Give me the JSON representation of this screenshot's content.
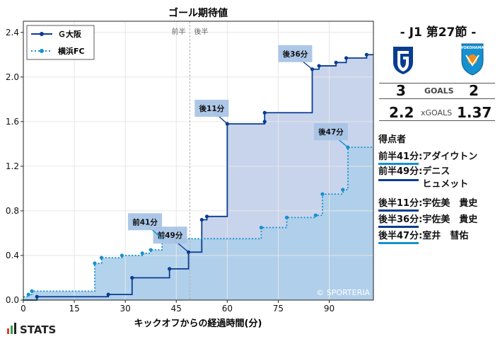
{
  "chart_data": {
    "type": "line",
    "title": "ゴール期待値",
    "xlabel": "キックオフからの経過時間(分)",
    "ylabel": "",
    "xlim": [
      0,
      103
    ],
    "ylim": [
      0,
      2.5
    ],
    "x_ticks": [
      0,
      15,
      30,
      45,
      60,
      75,
      90
    ],
    "y_ticks": [
      0.0,
      0.4,
      0.8,
      1.2,
      1.6,
      2.0,
      2.4
    ],
    "y_tick_labels": [
      "0.0",
      "0.4",
      "0.8",
      "1.2",
      "1.6",
      "2.0",
      "2.4"
    ],
    "halftime_x": 49,
    "halftime_labels": [
      "前半",
      "後半"
    ],
    "watermark": "© SPORTERIA",
    "grid": true,
    "legend_position": "top-left",
    "series": [
      {
        "name": "Ｇ大阪",
        "color": "#0a3d91",
        "fill": "#c8d4ec",
        "style": "solid",
        "points": [
          [
            0,
            0
          ],
          [
            4,
            0.03
          ],
          [
            25,
            0.05
          ],
          [
            32,
            0.2
          ],
          [
            43,
            0.28
          ],
          [
            48.6,
            0.43
          ],
          [
            52.5,
            0.72
          ],
          [
            54,
            0.75
          ],
          [
            60,
            1.58
          ],
          [
            71,
            1.6
          ],
          [
            71,
            1.68
          ],
          [
            85,
            2.07
          ],
          [
            87,
            2.1
          ],
          [
            92,
            2.13
          ],
          [
            95,
            2.17
          ],
          [
            101,
            2.2
          ],
          [
            103,
            2.2
          ]
        ]
      },
      {
        "name": "横浜FC",
        "color": "#1590d0",
        "fill": "#c7e3f3",
        "style": "dotted",
        "points": [
          [
            0,
            0.03
          ],
          [
            1.5,
            0.05
          ],
          [
            2.5,
            0.08
          ],
          [
            21,
            0.33
          ],
          [
            23,
            0.38
          ],
          [
            29,
            0.4
          ],
          [
            35,
            0.42
          ],
          [
            37.5,
            0.45
          ],
          [
            40.8,
            0.55
          ],
          [
            70,
            0.65
          ],
          [
            77.5,
            0.74
          ],
          [
            86,
            0.76
          ],
          [
            88,
            0.95
          ],
          [
            94,
            0.99
          ],
          [
            95.5,
            1.37
          ],
          [
            103,
            1.37
          ]
        ]
      }
    ],
    "annotations": [
      {
        "text": "後36分",
        "x": 85,
        "y": 2.07,
        "series": 0
      },
      {
        "text": "後11分",
        "x": 60,
        "y": 1.58,
        "series": 0
      },
      {
        "text": "後47分",
        "x": 95.5,
        "y": 1.37,
        "series": 1
      },
      {
        "text": "前49分",
        "x": 48.6,
        "y": 0.43,
        "series": 0
      },
      {
        "text": "前41分",
        "x": 40.8,
        "y": 0.55,
        "series": 1
      }
    ]
  },
  "panel": {
    "match_title": "- J1 第27節 -",
    "home_score": "3",
    "away_score": "2",
    "goals_label": "GOALS",
    "home_xg": "2.2",
    "away_xg": "1.37",
    "xgoals_label": "xGOALS",
    "scorers_title": "得点者",
    "scorers": [
      {
        "time": "前半41分",
        "sep": ":",
        "name": "アダイウトン",
        "team": "away"
      },
      {
        "time": "前半49分",
        "sep": ":",
        "name": "デニス\nヒュメット",
        "team": "home"
      },
      {
        "time": "後半11分",
        "sep": ":",
        "name": "宇佐美　貴史",
        "team": "home"
      },
      {
        "time": "後半36分",
        "sep": ":",
        "name": "宇佐美　貴史",
        "team": "home"
      },
      {
        "time": "後半47分",
        "sep": ":",
        "name": "室井　彗佑",
        "team": "away"
      }
    ],
    "home_logo": "gamba-osaka-crest",
    "away_logo": "yokohama-fc-crest",
    "away_logo_text": "YOKOHAMA",
    "footer_logo": "STATS"
  }
}
